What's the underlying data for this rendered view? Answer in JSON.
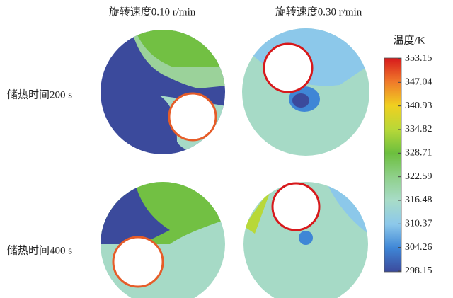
{
  "columns": [
    "旋转速度0.10 r/min",
    "旋转速度0.30 r/min"
  ],
  "rows": [
    "储热时间200 s",
    "储热时间400 s"
  ],
  "colorbar": {
    "title": "温度/K",
    "ticks": [
      353.15,
      347.04,
      340.93,
      334.82,
      328.71,
      322.59,
      316.48,
      310.37,
      304.26,
      298.15
    ],
    "colors": [
      "#d7191c",
      "#f07a2a",
      "#f0d020",
      "#b8d838",
      "#6cbf3e",
      "#8fd08a",
      "#a8dcc8",
      "#8cc8ea",
      "#3f86d6",
      "#3b4a9c"
    ]
  }
}
